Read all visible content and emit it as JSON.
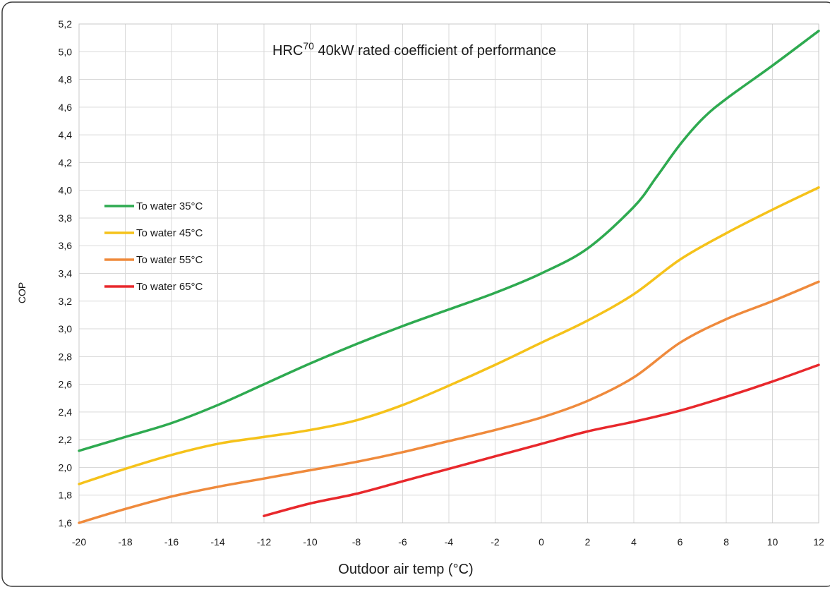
{
  "chart_data": {
    "type": "line",
    "title_main": "HRC",
    "title_sup": "70",
    "title_rest": " 40kW rated coefficient of performance",
    "xlabel": "Outdoor air temp (°C)",
    "ylabel": "COP",
    "xlim": [
      -20,
      12
    ],
    "ylim": [
      1.6,
      5.2
    ],
    "x_ticks": [
      -20,
      -18,
      -16,
      -14,
      -12,
      -10,
      -8,
      -6,
      -4,
      -2,
      0,
      2,
      4,
      6,
      8,
      10,
      12
    ],
    "x_tick_labels": [
      "-20",
      "-18",
      "-16",
      "-14",
      "-12",
      "-10",
      "-8",
      "-6",
      "-4",
      "-2",
      "0",
      "2",
      "4",
      "6",
      "8",
      "10",
      "12"
    ],
    "y_ticks": [
      1.6,
      1.8,
      2.0,
      2.2,
      2.4,
      2.6,
      2.8,
      3.0,
      3.2,
      3.4,
      3.6,
      3.8,
      4.0,
      4.2,
      4.4,
      4.6,
      4.8,
      5.0,
      5.2
    ],
    "y_tick_labels": [
      "1,6",
      "1,8",
      "2,0",
      "2,2",
      "2,4",
      "2,6",
      "2,8",
      "3,0",
      "3,2",
      "3,4",
      "3,6",
      "3,8",
      "4,0",
      "4,2",
      "4,4",
      "4,6",
      "4,8",
      "5,0",
      "5,2"
    ],
    "grid": true,
    "legend_position": "left-middle",
    "series": [
      {
        "name": "To water 35°C",
        "color": "#2eaa50",
        "x": [
          -20,
          -18,
          -16,
          -14,
          -12,
          -10,
          -8,
          -6,
          -4,
          -2,
          0,
          2,
          4,
          5,
          6,
          7,
          8,
          10,
          12
        ],
        "y": [
          2.12,
          2.22,
          2.32,
          2.45,
          2.6,
          2.75,
          2.89,
          3.02,
          3.14,
          3.26,
          3.4,
          3.58,
          3.88,
          4.1,
          4.33,
          4.52,
          4.66,
          4.9,
          5.15
        ]
      },
      {
        "name": "To water 45°C",
        "color": "#f5c21a",
        "x": [
          -20,
          -18,
          -16,
          -14,
          -12,
          -10,
          -8,
          -6,
          -4,
          -2,
          0,
          2,
          4,
          6,
          8,
          10,
          12
        ],
        "y": [
          1.88,
          1.99,
          2.09,
          2.17,
          2.22,
          2.27,
          2.34,
          2.45,
          2.59,
          2.74,
          2.9,
          3.06,
          3.25,
          3.5,
          3.69,
          3.86,
          4.02
        ]
      },
      {
        "name": "To water 55°C",
        "color": "#ef8a3c",
        "x": [
          -20,
          -18,
          -16,
          -14,
          -12,
          -10,
          -8,
          -6,
          -4,
          -2,
          0,
          2,
          4,
          6,
          8,
          10,
          12
        ],
        "y": [
          1.6,
          1.7,
          1.79,
          1.86,
          1.92,
          1.98,
          2.04,
          2.11,
          2.19,
          2.27,
          2.36,
          2.48,
          2.65,
          2.9,
          3.07,
          3.2,
          3.34
        ]
      },
      {
        "name": "To water 65°C",
        "color": "#e8282c",
        "x": [
          -12,
          -10,
          -8,
          -6,
          -4,
          -2,
          0,
          2,
          4,
          6,
          8,
          10,
          12
        ],
        "y": [
          1.65,
          1.74,
          1.81,
          1.9,
          1.99,
          2.08,
          2.17,
          2.26,
          2.33,
          2.41,
          2.51,
          2.62,
          2.74
        ]
      }
    ]
  }
}
